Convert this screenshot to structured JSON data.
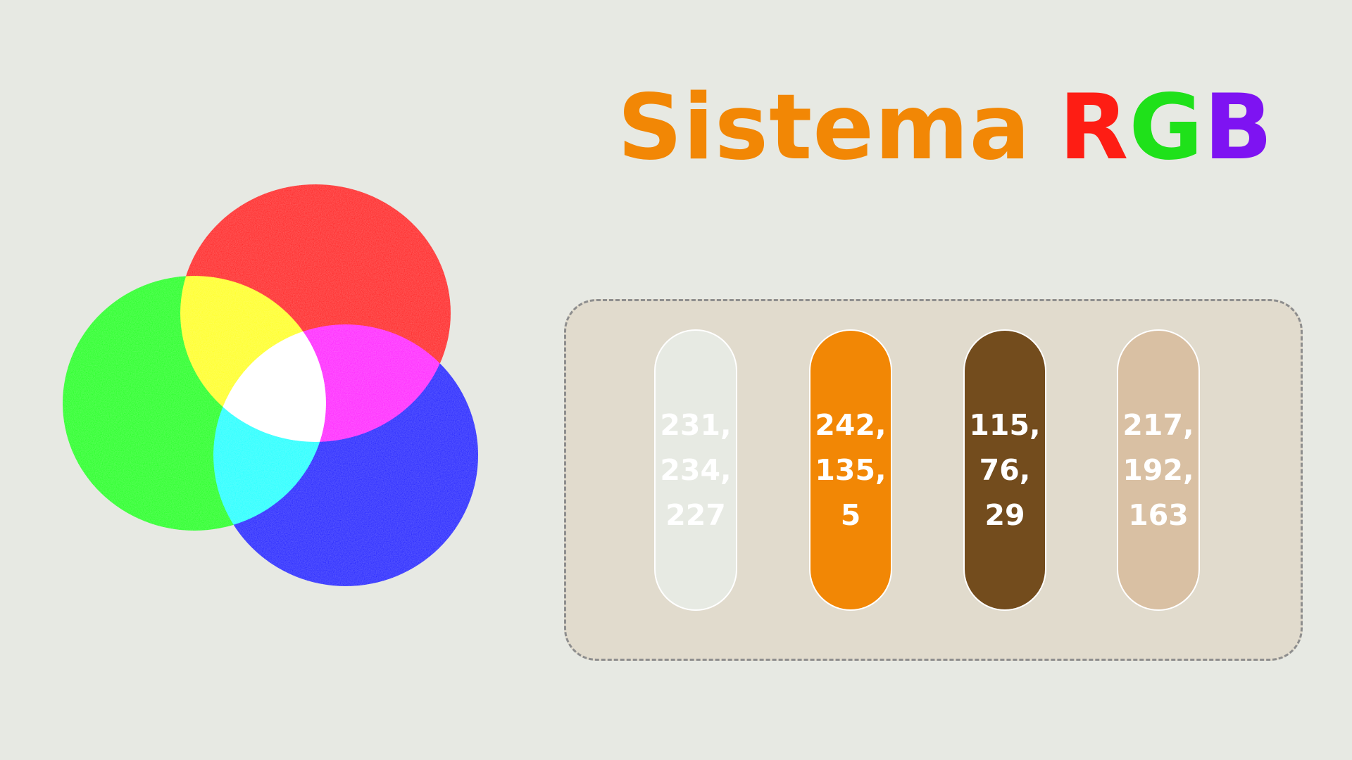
{
  "title": {
    "word": "Sistema",
    "r": "R",
    "g": "G",
    "b": "B"
  },
  "colors": {
    "background": "#e7e9e3",
    "title_orange": "#f28705",
    "title_r": "#fe1d14",
    "title_g": "#1fe11a",
    "title_b": "#7e13f2",
    "panel": "#e1dbcd",
    "panel_border": "#8e8e8e"
  },
  "venn": {
    "circles": [
      {
        "name": "red",
        "color": "#ff0000"
      },
      {
        "name": "green",
        "color": "#00ff00"
      },
      {
        "name": "blue",
        "color": "#0000ff"
      }
    ]
  },
  "swatches": [
    {
      "text": "231,\n234,\n227",
      "color": "#e7eae3"
    },
    {
      "text": "242,\n135,\n5",
      "color": "#f28705"
    },
    {
      "text": "115,\n76,\n29",
      "color": "#734c1d"
    },
    {
      "text": "217,\n192,\n163",
      "color": "#d9c0a3"
    }
  ]
}
